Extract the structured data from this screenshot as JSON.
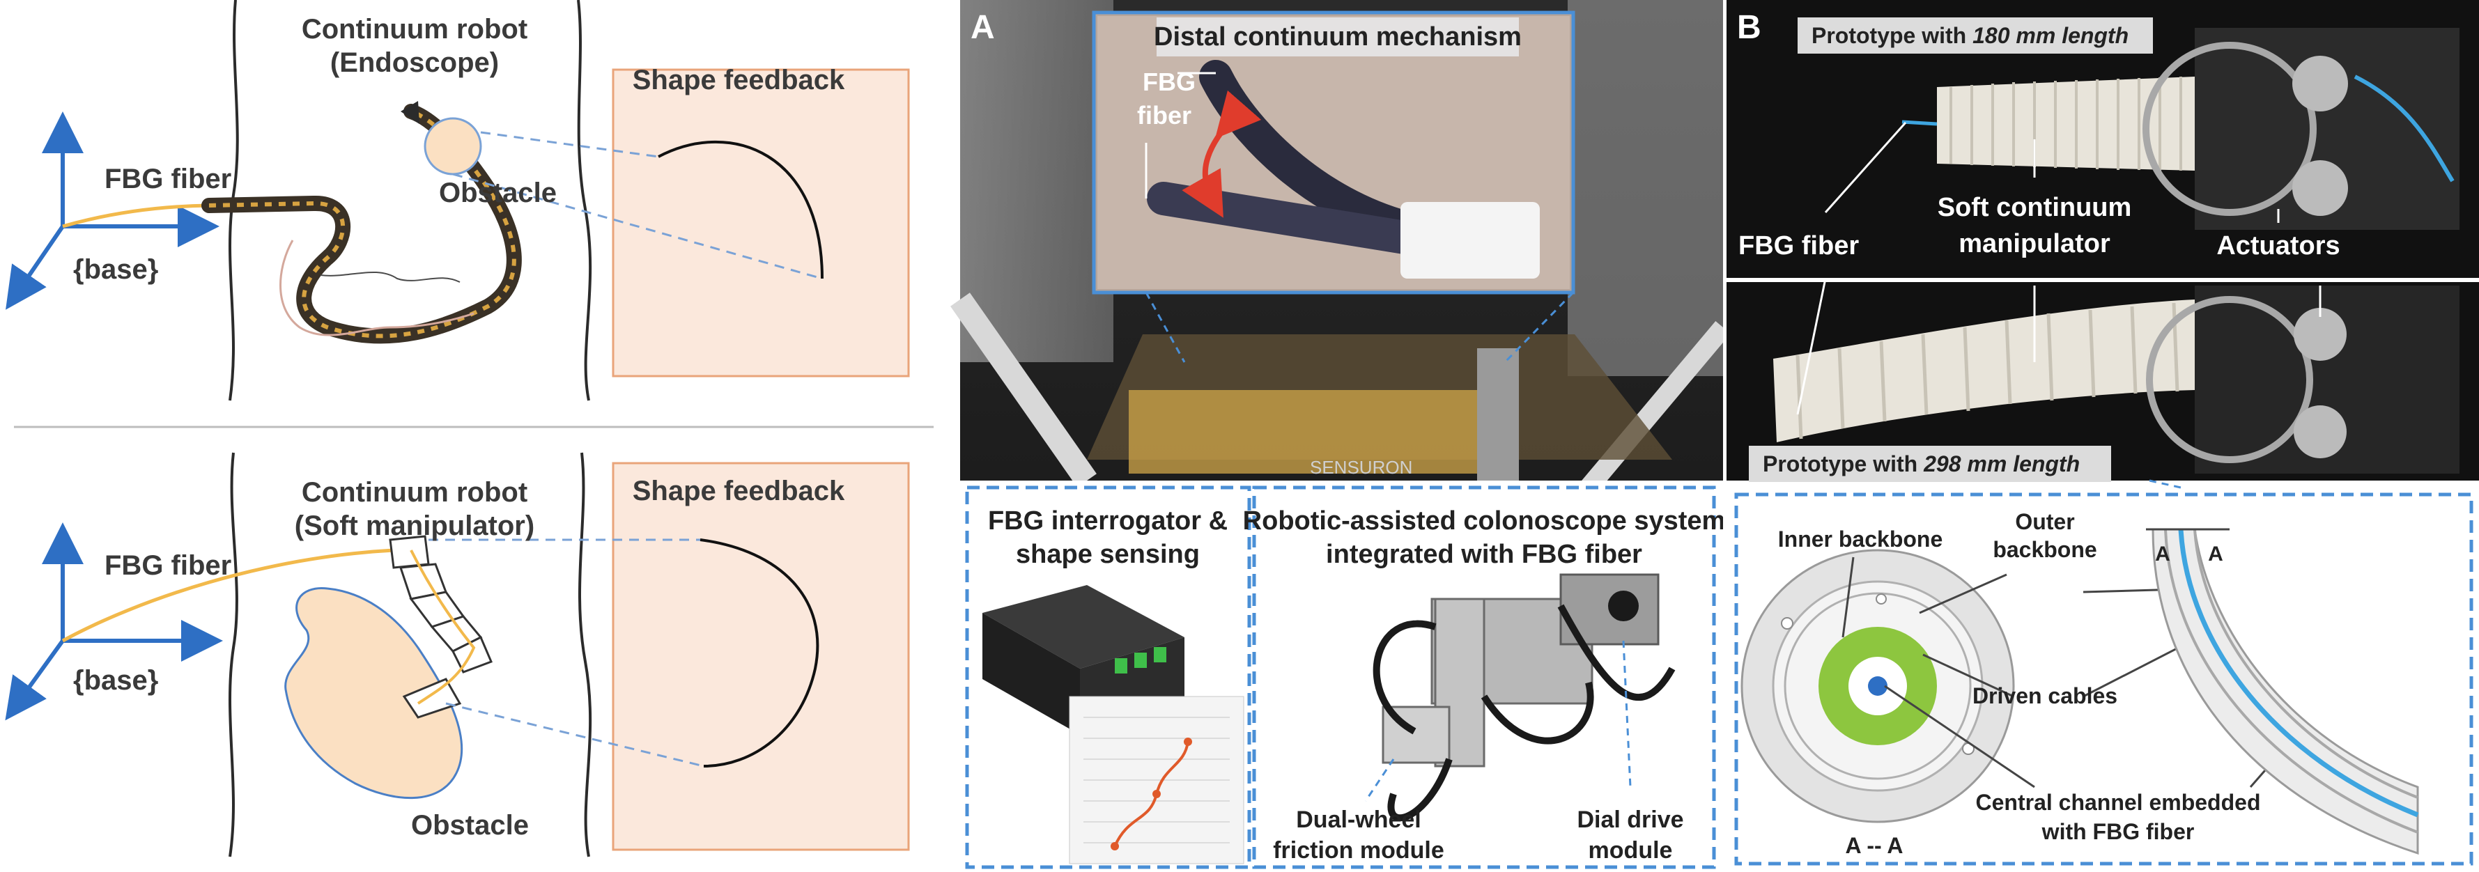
{
  "colors": {
    "axis_blue": "#2e6fc4",
    "fiber_yellow": "#f2b94b",
    "feedback_fill": "#fbe8dc",
    "feedback_stroke": "#e9a47a",
    "dashed_blue": "#4a8fd6",
    "green_disc": "#8dc63f",
    "red_arrow": "#e03c2c",
    "photo_dark": "#1b1b1b"
  },
  "panel_top": {
    "robot_title_1": "Continuum robot",
    "robot_title_2": "(Endoscope)",
    "feedback_title": "Shape feedback",
    "fiber_label": "FBG fiber",
    "obstacle_label": "Obstacle",
    "base_label": "{base}"
  },
  "panel_bottom": {
    "robot_title_1": "Continuum robot",
    "robot_title_2": "(Soft manipulator)",
    "feedback_title": "Shape feedback",
    "fiber_label": "FBG fiber",
    "obstacle_label": "Obstacle",
    "base_label": "{base}"
  },
  "panel_a": {
    "letter": "A",
    "inset_title": "Distal continuum mechanism",
    "fiber_label_1": "FBG",
    "fiber_label_2": "fiber",
    "brand_text": "SENSURON",
    "box1_title_1": "FBG interrogator &",
    "box1_title_2": "shape sensing",
    "box2_title_1": "Robotic-assisted colonoscope system",
    "box2_title_2": "integrated with FBG fiber",
    "dual_1": "Dual-wheel",
    "dual_2": "friction module",
    "dial_1": "Dial drive",
    "dial_2": "module"
  },
  "panel_b": {
    "letter": "B",
    "proto180_prefix": "Prototype with ",
    "proto180_em": "180 mm length",
    "proto298_prefix": "Prototype with ",
    "proto298_em": "298 mm length",
    "fiber_label": "FBG fiber",
    "soft_1": "Soft continuum",
    "soft_2": "manipulator",
    "actuators": "Actuators",
    "inner_backbone": "Inner backbone",
    "outer_1": "Outer",
    "outer_2": "backbone",
    "section_a_left": "A",
    "section_a_right": "A",
    "driven_cables": "Driven cables",
    "section_label": "A -- A",
    "central_1": "Central channel embedded",
    "central_2": "with FBG fiber"
  }
}
